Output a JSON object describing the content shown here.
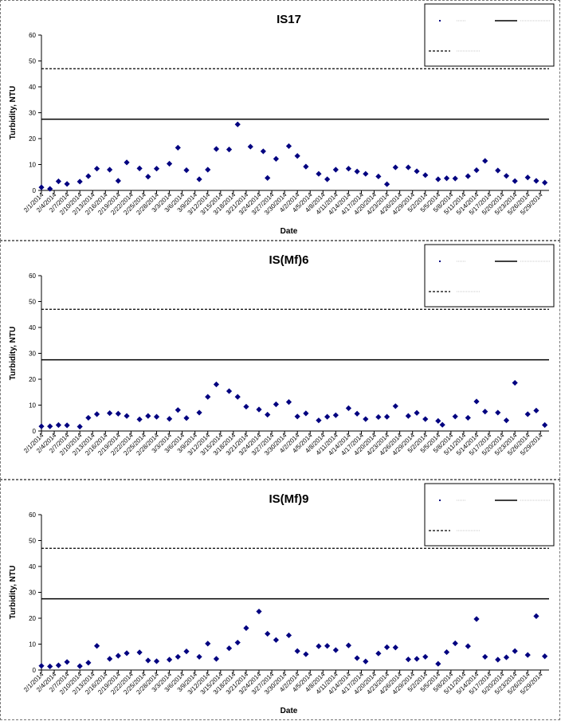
{
  "chart_data": [
    {
      "type": "scatter",
      "title": "IS17",
      "xlabel": "Date",
      "ylabel": "Turbidity, NTU",
      "ylim": [
        0,
        60
      ],
      "yticks": [
        0,
        10,
        20,
        30,
        40,
        50,
        60
      ],
      "xticks": [
        "2/1/2014",
        "2/4/2014",
        "2/7/2014",
        "2/10/2014",
        "2/13/2014",
        "2/16/2014",
        "2/19/2014",
        "2/22/2014",
        "2/25/2014",
        "2/28/2014",
        "3/3/2014",
        "3/6/2014",
        "3/9/2014",
        "3/12/2014",
        "3/15/2014",
        "3/18/2014",
        "3/21/2014",
        "3/24/2014",
        "3/27/2014",
        "3/30/2014",
        "4/2/2014",
        "4/5/2014",
        "4/8/2014",
        "4/11/2014",
        "4/14/2014",
        "4/17/2014",
        "4/20/2014",
        "4/23/2014",
        "4/26/2014",
        "4/29/2014",
        "5/2/2014",
        "5/5/2014",
        "5/8/2014",
        "5/11/2014",
        "5/14/2014",
        "5/17/2014",
        "5/20/2014",
        "5/23/2014",
        "5/26/2014",
        "5/29/2014"
      ],
      "grid": false,
      "legend_position": "top-right",
      "reference_lines": [
        {
          "style": "dashed",
          "value": 47
        },
        {
          "style": "solid",
          "value": 27.5
        }
      ],
      "series": [
        {
          "color": "#000080",
          "marker": "diamond",
          "points": [
            [
              "2/1/2014",
              1.2
            ],
            [
              "2/3/2014",
              0.6
            ],
            [
              "2/5/2014",
              3.5
            ],
            [
              "2/7/2014",
              2.5
            ],
            [
              "2/10/2014",
              3.4
            ],
            [
              "2/12/2014",
              5.5
            ],
            [
              "2/14/2014",
              8.4
            ],
            [
              "2/17/2014",
              8.0
            ],
            [
              "2/19/2014",
              3.7
            ],
            [
              "2/21/2014",
              10.8
            ],
            [
              "2/24/2014",
              8.5
            ],
            [
              "2/26/2014",
              5.3
            ],
            [
              "2/28/2014",
              8.4
            ],
            [
              "3/3/2014",
              10.3
            ],
            [
              "3/5/2014",
              16.5
            ],
            [
              "3/7/2014",
              7.8
            ],
            [
              "3/10/2014",
              4.3
            ],
            [
              "3/12/2014",
              8.0
            ],
            [
              "3/14/2014",
              16.0
            ],
            [
              "3/17/2014",
              15.8
            ],
            [
              "3/19/2014",
              25.5
            ],
            [
              "3/22/2014",
              16.9
            ],
            [
              "3/25/2014",
              15.1
            ],
            [
              "3/26/2014",
              4.8
            ],
            [
              "3/28/2014",
              12.2
            ],
            [
              "3/31/2014",
              17.1
            ],
            [
              "4/2/2014",
              13.3
            ],
            [
              "4/4/2014",
              9.2
            ],
            [
              "4/7/2014",
              6.4
            ],
            [
              "4/9/2014",
              4.3
            ],
            [
              "4/11/2014",
              8.0
            ],
            [
              "4/14/2014",
              8.4
            ],
            [
              "4/16/2014",
              7.3
            ],
            [
              "4/18/2014",
              6.4
            ],
            [
              "4/21/2014",
              5.4
            ],
            [
              "4/23/2014",
              2.4
            ],
            [
              "4/25/2014",
              8.9
            ],
            [
              "4/28/2014",
              8.9
            ],
            [
              "4/30/2014",
              7.4
            ],
            [
              "5/2/2014",
              5.9
            ],
            [
              "5/5/2014",
              4.3
            ],
            [
              "5/7/2014",
              4.7
            ],
            [
              "5/9/2014",
              4.6
            ],
            [
              "5/12/2014",
              5.5
            ],
            [
              "5/14/2014",
              7.8
            ],
            [
              "5/16/2014",
              11.4
            ],
            [
              "5/19/2014",
              7.7
            ],
            [
              "5/21/2014",
              5.6
            ],
            [
              "5/23/2014",
              3.6
            ],
            [
              "5/26/2014",
              5.0
            ],
            [
              "5/28/2014",
              3.7
            ],
            [
              "5/30/2014",
              3.0
            ]
          ]
        }
      ]
    },
    {
      "type": "scatter",
      "title": "IS(Mf)6",
      "xlabel": "",
      "ylabel": "Turbidity, NTU",
      "ylim": [
        0,
        60
      ],
      "yticks": [
        0,
        10,
        20,
        30,
        40,
        50,
        60
      ],
      "xticks": [
        "2/1/2014",
        "2/4/2014",
        "2/7/2014",
        "2/10/2014",
        "2/13/2014",
        "2/16/2014",
        "2/19/2014",
        "2/22/2014",
        "2/25/2014",
        "2/28/2014",
        "3/3/2014",
        "3/6/2014",
        "3/9/2014",
        "3/12/2014",
        "3/15/2014",
        "3/18/2014",
        "3/21/2014",
        "3/24/2014",
        "3/27/2014",
        "3/30/2014",
        "4/2/2014",
        "4/5/2014",
        "4/8/2014",
        "4/11/2014",
        "4/14/2014",
        "4/17/2014",
        "4/20/2014",
        "4/23/2014",
        "4/26/2014",
        "4/29/2014",
        "5/2/2014",
        "5/5/2014",
        "5/8/2014",
        "5/11/2014",
        "5/14/2014",
        "5/17/2014",
        "5/20/2014",
        "5/23/2014",
        "5/26/2014",
        "5/29/2014"
      ],
      "grid": false,
      "legend_position": "top-right",
      "reference_lines": [
        {
          "style": "dashed",
          "value": 47
        },
        {
          "style": "solid",
          "value": 27.5
        }
      ],
      "series": [
        {
          "color": "#000080",
          "marker": "diamond",
          "points": [
            [
              "2/1/2014",
              1.8
            ],
            [
              "2/3/2014",
              1.8
            ],
            [
              "2/5/2014",
              2.3
            ],
            [
              "2/7/2014",
              2.2
            ],
            [
              "2/10/2014",
              1.7
            ],
            [
              "2/12/2014",
              5.1
            ],
            [
              "2/14/2014",
              6.5
            ],
            [
              "2/17/2014",
              6.9
            ],
            [
              "2/19/2014",
              6.7
            ],
            [
              "2/21/2014",
              5.8
            ],
            [
              "2/24/2014",
              4.5
            ],
            [
              "2/26/2014",
              5.8
            ],
            [
              "2/28/2014",
              5.5
            ],
            [
              "3/3/2014",
              4.7
            ],
            [
              "3/5/2014",
              8.1
            ],
            [
              "3/7/2014",
              5.0
            ],
            [
              "3/10/2014",
              7.1
            ],
            [
              "3/12/2014",
              13.2
            ],
            [
              "3/14/2014",
              18.0
            ],
            [
              "3/17/2014",
              15.4
            ],
            [
              "3/19/2014",
              13.2
            ],
            [
              "3/21/2014",
              9.4
            ],
            [
              "3/24/2014",
              8.3
            ],
            [
              "3/26/2014",
              6.3
            ],
            [
              "3/28/2014",
              10.3
            ],
            [
              "3/31/2014",
              11.2
            ],
            [
              "4/2/2014",
              5.6
            ],
            [
              "4/4/2014",
              6.8
            ],
            [
              "4/7/2014",
              4.1
            ],
            [
              "4/9/2014",
              5.5
            ],
            [
              "4/11/2014",
              6.1
            ],
            [
              "4/14/2014",
              8.8
            ],
            [
              "4/16/2014",
              6.7
            ],
            [
              "4/18/2014",
              4.6
            ],
            [
              "4/21/2014",
              5.4
            ],
            [
              "4/23/2014",
              5.5
            ],
            [
              "4/25/2014",
              9.6
            ],
            [
              "4/28/2014",
              5.8
            ],
            [
              "4/30/2014",
              7.0
            ],
            [
              "5/2/2014",
              4.6
            ],
            [
              "5/5/2014",
              3.9
            ],
            [
              "5/6/2014",
              2.4
            ],
            [
              "5/9/2014",
              5.6
            ],
            [
              "5/12/2014",
              5.1
            ],
            [
              "5/14/2014",
              11.4
            ],
            [
              "5/16/2014",
              7.5
            ],
            [
              "5/19/2014",
              7.1
            ],
            [
              "5/21/2014",
              4.1
            ],
            [
              "5/23/2014",
              18.6
            ],
            [
              "5/26/2014",
              6.5
            ],
            [
              "5/28/2014",
              7.9
            ],
            [
              "5/30/2014",
              2.3
            ]
          ]
        }
      ]
    },
    {
      "type": "scatter",
      "title": "IS(Mf)9",
      "xlabel": "Date",
      "ylabel": "Turbidity, NTU",
      "ylim": [
        0,
        60
      ],
      "yticks": [
        0,
        10,
        20,
        30,
        40,
        50,
        60
      ],
      "xticks": [
        "2/1/2014",
        "2/4/2014",
        "2/7/2014",
        "2/10/2014",
        "2/13/2014",
        "2/16/2014",
        "2/19/2014",
        "2/22/2014",
        "2/25/2014",
        "2/28/2014",
        "3/3/2014",
        "3/6/2014",
        "3/9/2014",
        "3/12/2014",
        "3/15/2014",
        "3/18/2014",
        "3/21/2014",
        "3/24/2014",
        "3/27/2014",
        "3/30/2014",
        "4/2/2014",
        "4/5/2014",
        "4/8/2014",
        "4/11/2014",
        "4/14/2014",
        "4/17/2014",
        "4/20/2014",
        "4/23/2014",
        "4/26/2014",
        "4/29/2014",
        "5/2/2014",
        "5/5/2014",
        "5/8/2014",
        "5/11/2014",
        "5/14/2014",
        "5/17/2014",
        "5/20/2014",
        "5/23/2014",
        "5/26/2014",
        "5/29/2014"
      ],
      "grid": false,
      "legend_position": "top-right",
      "reference_lines": [
        {
          "style": "dashed",
          "value": 47
        },
        {
          "style": "solid",
          "value": 27.5
        }
      ],
      "series": [
        {
          "color": "#000080",
          "marker": "diamond",
          "points": [
            [
              "2/1/2014",
              1.6
            ],
            [
              "2/3/2014",
              1.4
            ],
            [
              "2/5/2014",
              1.8
            ],
            [
              "2/7/2014",
              3.1
            ],
            [
              "2/10/2014",
              1.5
            ],
            [
              "2/12/2014",
              2.8
            ],
            [
              "2/14/2014",
              9.3
            ],
            [
              "2/17/2014",
              4.3
            ],
            [
              "2/19/2014",
              5.5
            ],
            [
              "2/21/2014",
              6.5
            ],
            [
              "2/24/2014",
              6.8
            ],
            [
              "2/26/2014",
              3.7
            ],
            [
              "2/28/2014",
              3.4
            ],
            [
              "3/3/2014",
              4.0
            ],
            [
              "3/5/2014",
              5.1
            ],
            [
              "3/7/2014",
              7.2
            ],
            [
              "3/10/2014",
              5.1
            ],
            [
              "3/12/2014",
              10.2
            ],
            [
              "3/14/2014",
              4.3
            ],
            [
              "3/17/2014",
              8.4
            ],
            [
              "3/19/2014",
              10.6
            ],
            [
              "3/21/2014",
              16.2
            ],
            [
              "3/24/2014",
              22.6
            ],
            [
              "3/26/2014",
              14.0
            ],
            [
              "3/28/2014",
              11.6
            ],
            [
              "3/31/2014",
              13.4
            ],
            [
              "4/2/2014",
              7.3
            ],
            [
              "4/4/2014",
              6.1
            ],
            [
              "4/7/2014",
              9.2
            ],
            [
              "4/9/2014",
              9.3
            ],
            [
              "4/11/2014",
              7.7
            ],
            [
              "4/14/2014",
              9.5
            ],
            [
              "4/16/2014",
              4.6
            ],
            [
              "4/18/2014",
              3.3
            ],
            [
              "4/21/2014",
              6.4
            ],
            [
              "4/23/2014",
              8.8
            ],
            [
              "4/25/2014",
              8.7
            ],
            [
              "4/28/2014",
              4.1
            ],
            [
              "4/30/2014",
              4.3
            ],
            [
              "5/2/2014",
              5.1
            ],
            [
              "5/5/2014",
              2.4
            ],
            [
              "5/7/2014",
              6.9
            ],
            [
              "5/9/2014",
              10.3
            ],
            [
              "5/12/2014",
              9.2
            ],
            [
              "5/14/2014",
              19.7
            ],
            [
              "5/16/2014",
              5.1
            ],
            [
              "5/19/2014",
              4.0
            ],
            [
              "5/21/2014",
              4.9
            ],
            [
              "5/23/2014",
              7.3
            ],
            [
              "5/26/2014",
              5.8
            ],
            [
              "5/28/2014",
              20.8
            ],
            [
              "5/30/2014",
              5.3
            ]
          ]
        }
      ]
    }
  ]
}
